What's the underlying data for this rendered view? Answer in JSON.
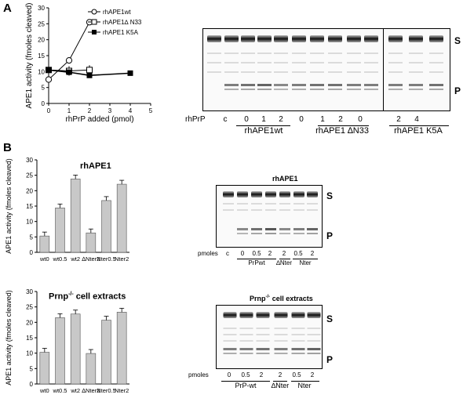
{
  "panel_a": {
    "letter": "A",
    "chart": {
      "ylabel": "APE1 activity (fmoles cleaved)",
      "xlabel": "rhPrP added (pmol)",
      "legend": [
        "rhAPE1wt",
        "rhAPE1∆ N33",
        "rhAPE1 K5A"
      ]
    },
    "gel": {
      "s_label": "S",
      "p_label": "P",
      "row_label": "rhPrP",
      "lanes": [
        "c",
        "0",
        "1",
        "2",
        "0",
        "1",
        "2",
        "0",
        "2",
        "4"
      ],
      "groups": [
        "rhAPE1wt",
        "rhAPE1 ∆N33",
        "rhAPE1 K5A"
      ]
    }
  },
  "panel_b": {
    "letter": "B",
    "chart1": {
      "title": "rhAPE1",
      "ylabel": "APE1 activity (fmoles cleaved)"
    },
    "chart2": {
      "title_main": "Prnp",
      "title_sup": "-/-",
      "title_rest": " cell extracts",
      "ylabel": "APE1 activity (fmoles cleaved)"
    },
    "gel1": {
      "title": "rhAPE1",
      "s_label": "S",
      "p_label": "P",
      "row_label": "pmoles",
      "lanes": [
        "c",
        "0",
        "0.5",
        "2",
        "2",
        "0.5",
        "2"
      ],
      "groups": [
        "PrPwt",
        "∆Nter",
        "Nter"
      ]
    },
    "gel2": {
      "title_main": "Prnp",
      "title_sup": "-/-",
      "title_rest": " cell extracts",
      "s_label": "S",
      "p_label": "P",
      "row_label": "pmoles",
      "lanes": [
        "0",
        "0.5",
        "2",
        "2",
        "0.5",
        "2"
      ],
      "groups": [
        "PrP-wt",
        "∆Nter",
        "Nter"
      ]
    }
  },
  "chart_data": [
    {
      "type": "line",
      "xlabel": "rhPrP added (pmol)",
      "ylabel": "APE1 activity (fmoles cleaved)",
      "xlim": [
        0,
        5
      ],
      "ylim": [
        0,
        30
      ],
      "xticks": [
        0,
        1,
        2,
        3,
        4,
        5
      ],
      "yticks": [
        0,
        5,
        10,
        15,
        20,
        25,
        30
      ],
      "series": [
        {
          "name": "rhAPE1wt",
          "marker": "open-circle",
          "x": [
            0,
            1,
            2
          ],
          "y": [
            7.5,
            13.5,
            25.5
          ]
        },
        {
          "name": "rhAPE1∆ N33",
          "marker": "open-square",
          "x": [
            0,
            1,
            2
          ],
          "y": [
            10.5,
            10.2,
            10.5
          ]
        },
        {
          "name": "rhAPE1 K5A",
          "marker": "filled-square",
          "x": [
            0,
            1,
            2,
            4
          ],
          "y": [
            10.5,
            9.8,
            8.8,
            9.5
          ]
        }
      ]
    },
    {
      "type": "bar",
      "title": "rhAPE1",
      "ylabel": "APE1 activity (fmoles cleaved)",
      "ylim": [
        0,
        30
      ],
      "yticks": [
        0,
        5,
        10,
        15,
        20,
        25,
        30
      ],
      "categories": [
        "wt0",
        "wt0.5",
        "wt2",
        "∆Nter2",
        "Nter0.5",
        "Nter2"
      ],
      "values": [
        5.3,
        14.4,
        23.8,
        6.3,
        16.8,
        22.1
      ]
    },
    {
      "type": "bar",
      "title": "Prnp-/- cell extracts",
      "ylabel": "APE1 activity (fmoles cleaved)",
      "ylim": [
        0,
        30
      ],
      "yticks": [
        0,
        5,
        10,
        15,
        20,
        25,
        30
      ],
      "categories": [
        "wt0",
        "wt0.5",
        "wt2",
        "∆Nter2",
        "Nter0.5",
        "Nter2"
      ],
      "values": [
        10.3,
        21.5,
        22.7,
        9.9,
        20.7,
        23.3
      ]
    }
  ]
}
